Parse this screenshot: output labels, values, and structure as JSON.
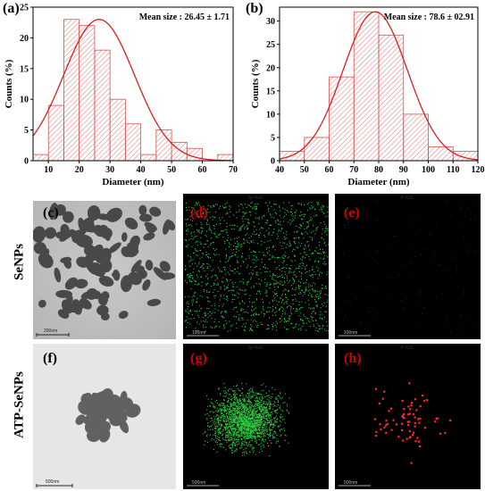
{
  "panels": {
    "a": "(a)",
    "b": "(b)",
    "c": "(c)",
    "d": "(d)",
    "e": "(e)",
    "f": "(f)",
    "g": "(g)",
    "h": "(h)"
  },
  "row_labels": {
    "top": "SeNPs",
    "bottom": "ATP-SeNPs"
  },
  "map_titles": {
    "se": "Se Kα1",
    "p": "P Kα1"
  },
  "scale_bars": {
    "c": "200nm",
    "d": "100nm",
    "e": "100nm",
    "f": "500nm",
    "g": "500nm",
    "h": "500nm"
  },
  "colors": {
    "bar_hatch": "#d9534f",
    "fit_curve": "#d62020",
    "se_map": "#2ecc40",
    "p_map": "#ff2a2a",
    "panel_label_red": "#d40000"
  },
  "chart_data": [
    {
      "type": "bar",
      "panel": "a",
      "annotation": "Mean size : 26.45 ± 1.71",
      "xlabel": "Diameter (nm)",
      "ylabel": "Counts (%)",
      "xlim": [
        5,
        70
      ],
      "ylim": [
        0,
        25
      ],
      "xticks": [
        10,
        20,
        30,
        40,
        50,
        60,
        70
      ],
      "yticks": [
        0,
        5,
        10,
        15,
        20,
        25
      ],
      "bin_width": 5,
      "bins": [
        {
          "x0": 5,
          "x1": 10,
          "value": 1
        },
        {
          "x0": 10,
          "x1": 15,
          "value": 9
        },
        {
          "x0": 15,
          "x1": 20,
          "value": 23
        },
        {
          "x0": 20,
          "x1": 25,
          "value": 22
        },
        {
          "x0": 25,
          "x1": 30,
          "value": 18
        },
        {
          "x0": 30,
          "x1": 35,
          "value": 10
        },
        {
          "x0": 35,
          "x1": 40,
          "value": 6
        },
        {
          "x0": 40,
          "x1": 45,
          "value": 1
        },
        {
          "x0": 45,
          "x1": 50,
          "value": 5
        },
        {
          "x0": 50,
          "x1": 55,
          "value": 3
        },
        {
          "x0": 55,
          "x1": 60,
          "value": 2
        },
        {
          "x0": 65,
          "x1": 70,
          "value": 1
        }
      ],
      "fit": {
        "mean": 26.45,
        "sigma": 11.5,
        "peak": 23
      }
    },
    {
      "type": "bar",
      "panel": "b",
      "annotation": "Mean size : 78.6 ± 02.91",
      "xlabel": "Diameter (nm)",
      "ylabel": "Counts (%)",
      "xlim": [
        40,
        120
      ],
      "ylim": [
        0,
        33
      ],
      "xticks": [
        40,
        50,
        60,
        70,
        80,
        90,
        100,
        110,
        120
      ],
      "yticks": [
        0,
        5,
        10,
        15,
        20,
        25,
        30
      ],
      "bin_width": 10,
      "bins": [
        {
          "x0": 40,
          "x1": 50,
          "value": 2
        },
        {
          "x0": 50,
          "x1": 60,
          "value": 5
        },
        {
          "x0": 60,
          "x1": 70,
          "value": 18
        },
        {
          "x0": 70,
          "x1": 80,
          "value": 32
        },
        {
          "x0": 80,
          "x1": 90,
          "value": 27
        },
        {
          "x0": 90,
          "x1": 100,
          "value": 10
        },
        {
          "x0": 100,
          "x1": 110,
          "value": 3
        },
        {
          "x0": 110,
          "x1": 120,
          "value": 2
        }
      ],
      "fit": {
        "mean": 78.6,
        "sigma": 13,
        "peak": 32
      }
    }
  ]
}
